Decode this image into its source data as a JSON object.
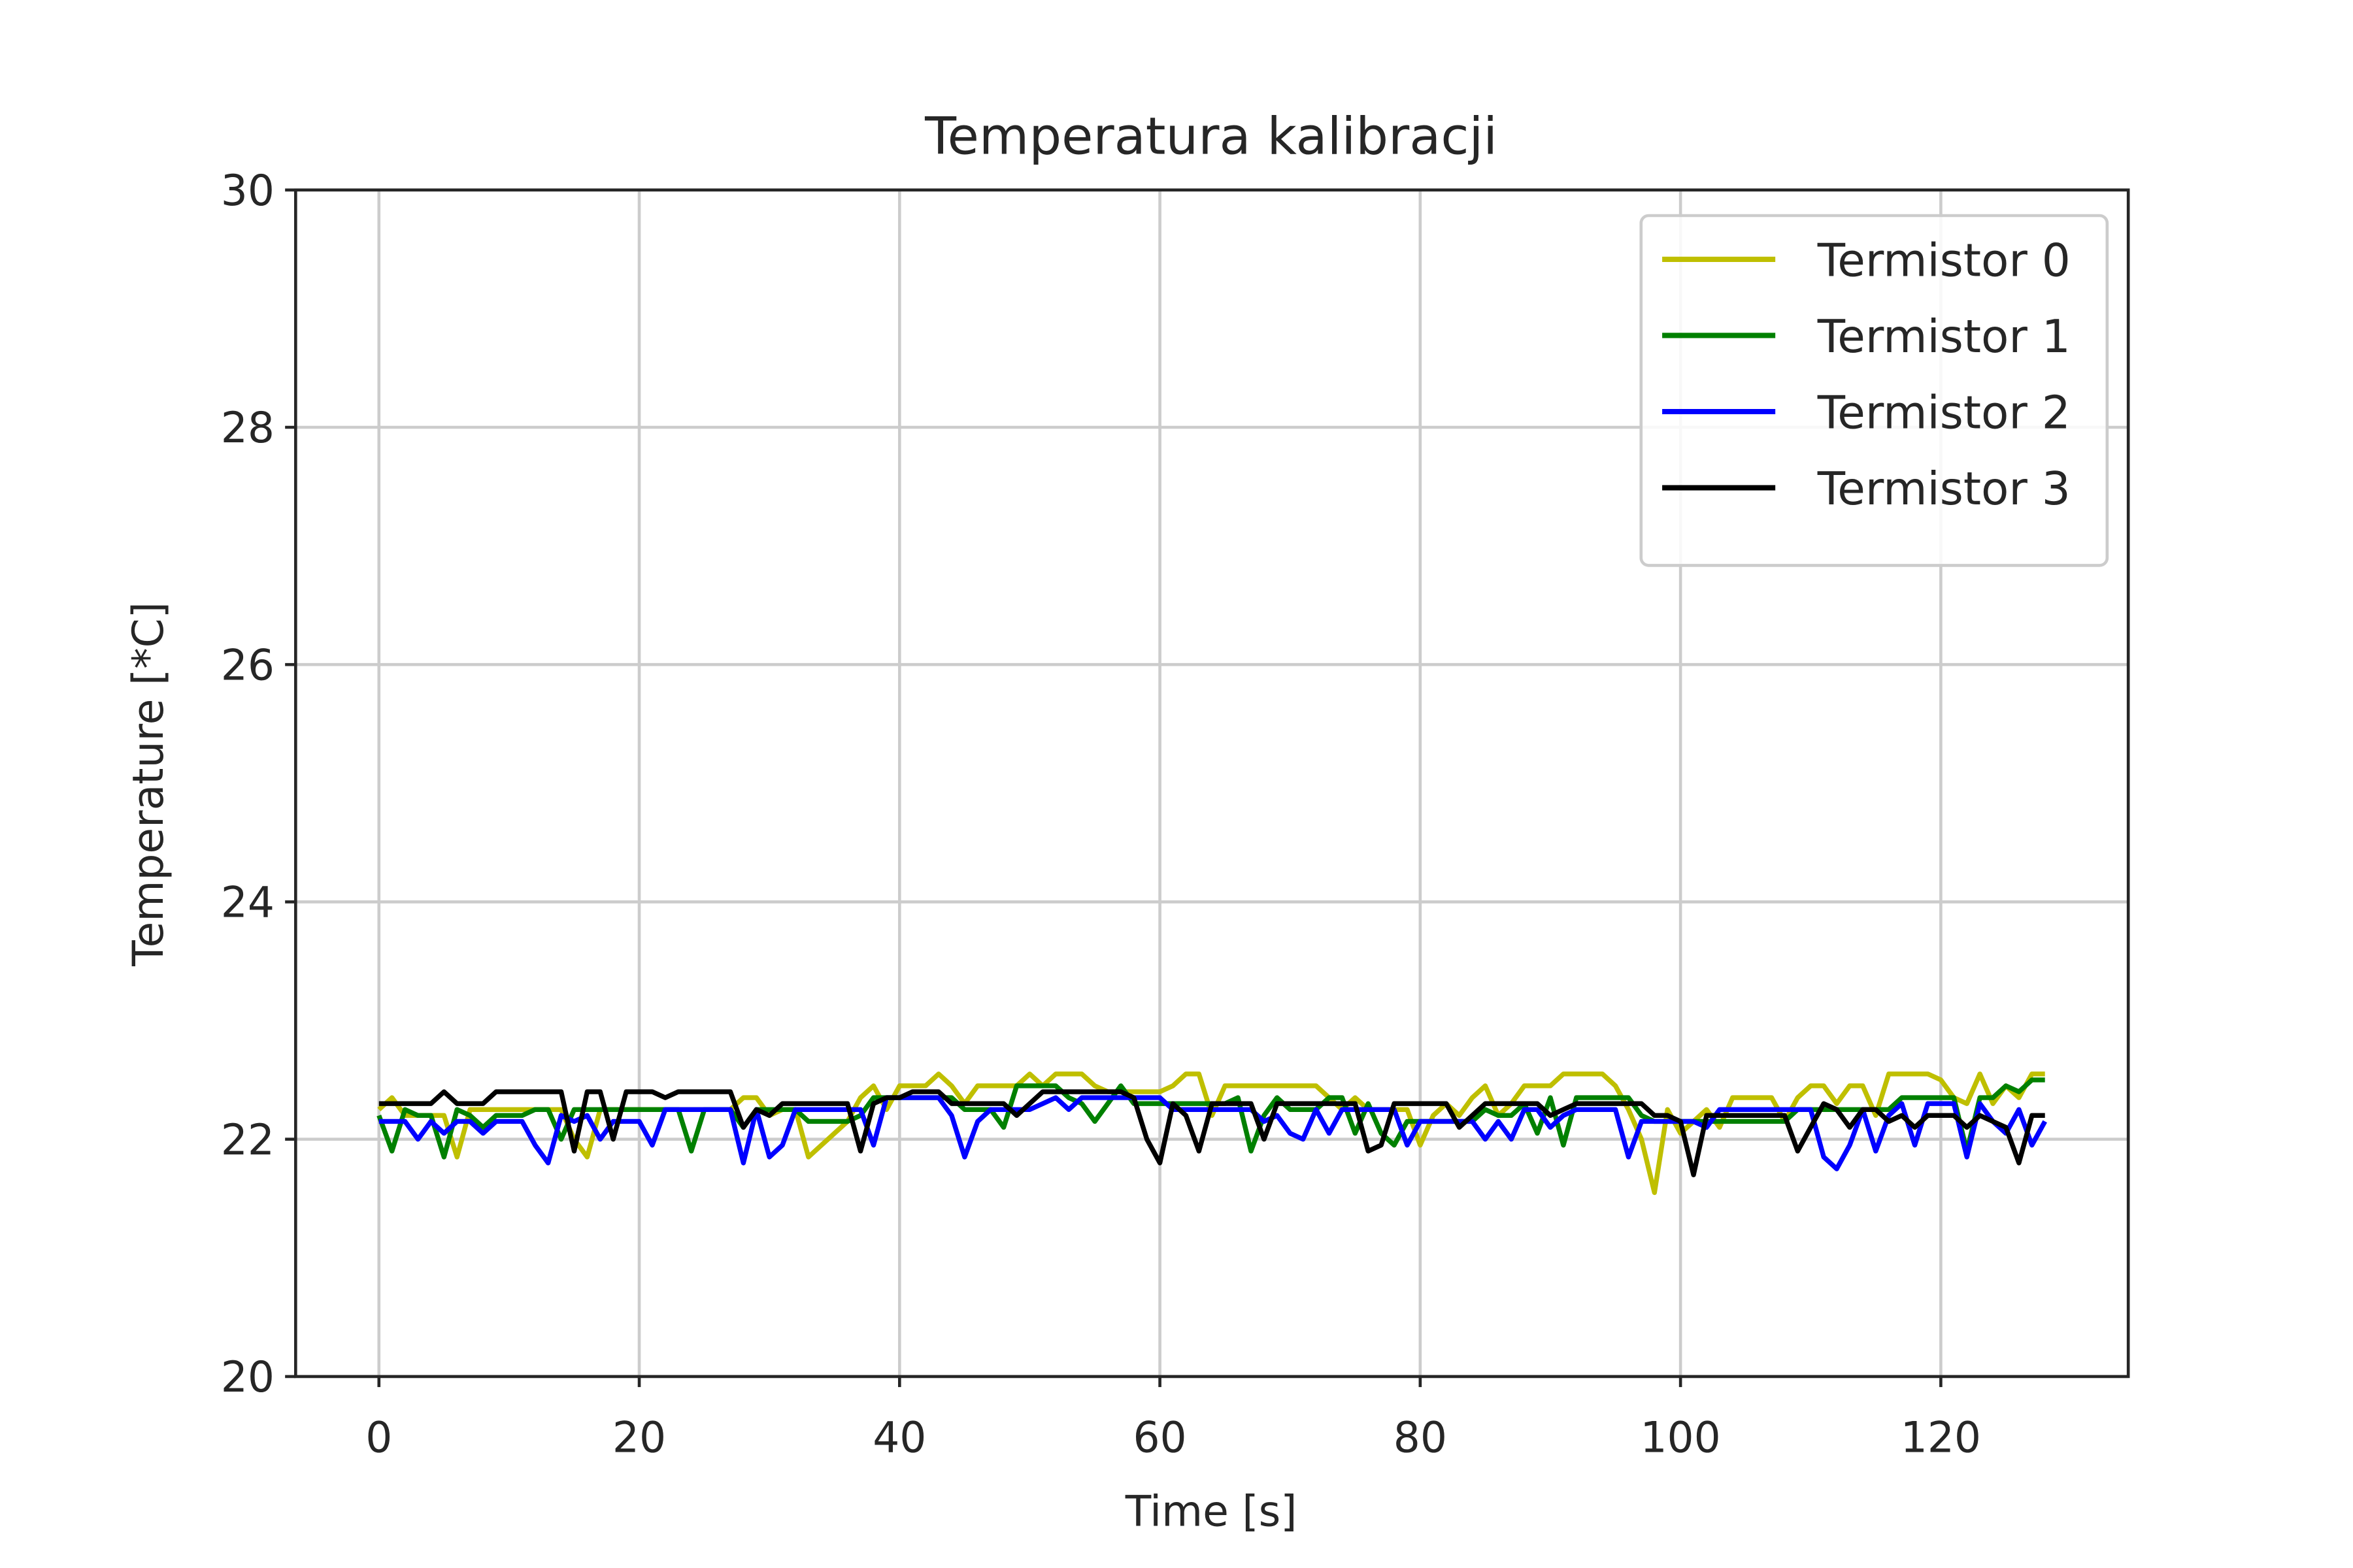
{
  "chart_data": {
    "type": "line",
    "title": "Temperatura kalibracji",
    "xlabel": "Time [s]",
    "ylabel": "Temperature [*C]",
    "x": [
      0,
      1,
      2,
      3,
      4,
      5,
      6,
      7,
      8,
      9,
      10,
      11,
      12,
      13,
      14,
      15,
      16,
      17,
      18,
      19,
      20,
      21,
      22,
      23,
      24,
      25,
      26,
      27,
      28,
      29,
      30,
      31,
      32,
      33,
      34,
      35,
      36,
      37,
      38,
      39,
      40,
      41,
      42,
      43,
      44,
      45,
      46,
      47,
      48,
      49,
      50,
      51,
      52,
      53,
      54,
      55,
      56,
      57,
      58,
      59,
      60,
      61,
      62,
      63,
      64,
      65,
      66,
      67,
      68,
      69,
      70,
      71,
      72,
      73,
      74,
      75,
      76,
      77,
      78,
      79,
      80,
      81,
      82,
      83,
      84,
      85,
      86,
      87,
      88,
      89,
      90,
      91,
      92,
      93,
      94,
      95,
      96,
      97,
      98,
      99,
      100,
      101,
      102,
      103,
      104,
      105,
      106,
      107,
      108,
      109,
      110,
      111,
      112,
      113,
      114,
      115,
      116,
      117,
      118,
      119,
      120,
      121,
      122,
      123,
      124,
      125,
      126,
      127,
      128
    ],
    "series": [
      {
        "name": "Termistor 0",
        "color": "#bfbf00",
        "values": [
          22.25,
          22.35,
          22.2,
          22.2,
          22.2,
          22.2,
          21.85,
          22.25,
          22.25,
          22.25,
          22.25,
          22.25,
          22.25,
          22.25,
          22.25,
          22.0,
          21.85,
          22.25,
          22.25,
          22.25,
          22.25,
          22.25,
          22.25,
          22.25,
          22.25,
          22.25,
          22.25,
          22.25,
          22.35,
          22.35,
          22.2,
          22.25,
          22.25,
          21.85,
          21.95,
          22.05,
          22.15,
          22.35,
          22.45,
          22.25,
          22.45,
          22.45,
          22.45,
          22.55,
          22.45,
          22.3,
          22.45,
          22.45,
          22.45,
          22.45,
          22.55,
          22.45,
          22.55,
          22.55,
          22.55,
          22.45,
          22.4,
          22.4,
          22.4,
          22.4,
          22.4,
          22.45,
          22.55,
          22.55,
          22.2,
          22.45,
          22.45,
          22.45,
          22.45,
          22.45,
          22.45,
          22.45,
          22.45,
          22.35,
          22.25,
          22.35,
          22.25,
          22.25,
          22.25,
          22.25,
          21.95,
          22.2,
          22.3,
          22.2,
          22.35,
          22.45,
          22.2,
          22.3,
          22.45,
          22.45,
          22.45,
          22.55,
          22.55,
          22.55,
          22.55,
          22.45,
          22.25,
          22.0,
          21.55,
          22.25,
          22.05,
          22.15,
          22.25,
          22.1,
          22.35,
          22.35,
          22.35,
          22.35,
          22.15,
          22.35,
          22.45,
          22.45,
          22.3,
          22.45,
          22.45,
          22.2,
          22.55,
          22.55,
          22.55,
          22.55,
          22.5,
          22.35,
          22.3,
          22.55,
          22.3,
          22.45,
          22.35,
          22.55,
          22.55
        ]
      },
      {
        "name": "Termistor 1",
        "color": "#008000",
        "values": [
          22.2,
          21.9,
          22.25,
          22.2,
          22.2,
          21.85,
          22.25,
          22.2,
          22.1,
          22.2,
          22.2,
          22.2,
          22.25,
          22.25,
          22.0,
          22.25,
          22.25,
          22.25,
          22.25,
          22.25,
          22.25,
          22.25,
          22.25,
          22.25,
          21.9,
          22.25,
          22.25,
          22.25,
          22.1,
          22.25,
          22.25,
          22.25,
          22.25,
          22.15,
          22.15,
          22.15,
          22.15,
          22.2,
          22.35,
          22.35,
          22.35,
          22.35,
          22.35,
          22.35,
          22.35,
          22.25,
          22.25,
          22.25,
          22.1,
          22.45,
          22.45,
          22.45,
          22.45,
          22.35,
          22.3,
          22.15,
          22.3,
          22.45,
          22.3,
          22.3,
          22.3,
          22.3,
          22.3,
          22.3,
          22.3,
          22.3,
          22.35,
          21.9,
          22.2,
          22.35,
          22.25,
          22.25,
          22.25,
          22.35,
          22.35,
          22.05,
          22.3,
          22.05,
          21.95,
          22.15,
          22.15,
          22.15,
          22.15,
          22.15,
          22.15,
          22.25,
          22.2,
          22.2,
          22.3,
          22.05,
          22.35,
          21.95,
          22.35,
          22.35,
          22.35,
          22.35,
          22.35,
          22.2,
          22.15,
          22.15,
          22.15,
          22.15,
          22.15,
          22.15,
          22.15,
          22.15,
          22.15,
          22.15,
          22.15,
          22.25,
          22.25,
          22.25,
          22.25,
          22.25,
          22.25,
          22.25,
          22.25,
          22.35,
          22.35,
          22.35,
          22.35,
          22.35,
          21.9,
          22.35,
          22.35,
          22.45,
          22.4,
          22.5,
          22.5
        ]
      },
      {
        "name": "Termistor 2",
        "color": "#0000ff",
        "values": [
          22.15,
          22.15,
          22.15,
          22.0,
          22.15,
          22.05,
          22.15,
          22.15,
          22.05,
          22.15,
          22.15,
          22.15,
          21.95,
          21.8,
          22.2,
          22.15,
          22.2,
          22.0,
          22.15,
          22.15,
          22.15,
          21.95,
          22.25,
          22.25,
          22.25,
          22.25,
          22.25,
          22.25,
          21.8,
          22.25,
          21.85,
          21.95,
          22.25,
          22.25,
          22.25,
          22.25,
          22.25,
          22.25,
          21.95,
          22.35,
          22.35,
          22.35,
          22.35,
          22.35,
          22.2,
          21.85,
          22.15,
          22.25,
          22.25,
          22.25,
          22.25,
          22.3,
          22.35,
          22.25,
          22.35,
          22.35,
          22.35,
          22.35,
          22.35,
          22.35,
          22.35,
          22.25,
          22.25,
          22.25,
          22.25,
          22.25,
          22.25,
          22.25,
          22.15,
          22.2,
          22.05,
          22.0,
          22.25,
          22.05,
          22.25,
          22.25,
          22.25,
          22.25,
          22.25,
          21.95,
          22.15,
          22.15,
          22.15,
          22.15,
          22.15,
          22.0,
          22.15,
          22.0,
          22.25,
          22.25,
          22.1,
          22.2,
          22.25,
          22.25,
          22.25,
          22.25,
          21.85,
          22.15,
          22.15,
          22.15,
          22.15,
          22.15,
          22.1,
          22.25,
          22.25,
          22.25,
          22.25,
          22.25,
          22.25,
          22.25,
          22.25,
          21.85,
          21.75,
          21.95,
          22.25,
          21.9,
          22.2,
          22.3,
          21.95,
          22.3,
          22.3,
          22.3,
          21.85,
          22.3,
          22.15,
          22.05,
          22.25,
          21.95,
          22.15
        ]
      },
      {
        "name": "Termistor 3",
        "color": "#000000",
        "values": [
          22.3,
          22.3,
          22.3,
          22.3,
          22.3,
          22.4,
          22.3,
          22.3,
          22.3,
          22.4,
          22.4,
          22.4,
          22.4,
          22.4,
          22.4,
          21.9,
          22.4,
          22.4,
          22.0,
          22.4,
          22.4,
          22.4,
          22.35,
          22.4,
          22.4,
          22.4,
          22.4,
          22.4,
          22.1,
          22.25,
          22.2,
          22.3,
          22.3,
          22.3,
          22.3,
          22.3,
          22.3,
          21.9,
          22.3,
          22.35,
          22.35,
          22.4,
          22.4,
          22.4,
          22.3,
          22.3,
          22.3,
          22.3,
          22.3,
          22.2,
          22.3,
          22.4,
          22.4,
          22.4,
          22.4,
          22.4,
          22.4,
          22.4,
          22.35,
          22.0,
          21.8,
          22.3,
          22.2,
          21.9,
          22.3,
          22.3,
          22.3,
          22.3,
          22.0,
          22.3,
          22.3,
          22.3,
          22.3,
          22.3,
          22.3,
          22.3,
          21.9,
          21.95,
          22.3,
          22.3,
          22.3,
          22.3,
          22.3,
          22.1,
          22.2,
          22.3,
          22.3,
          22.3,
          22.3,
          22.3,
          22.2,
          22.25,
          22.3,
          22.3,
          22.3,
          22.3,
          22.3,
          22.3,
          22.2,
          22.2,
          22.15,
          21.7,
          22.2,
          22.2,
          22.2,
          22.2,
          22.2,
          22.2,
          22.2,
          21.9,
          22.1,
          22.3,
          22.25,
          22.1,
          22.25,
          22.25,
          22.15,
          22.2,
          22.1,
          22.2,
          22.2,
          22.2,
          22.1,
          22.2,
          22.15,
          22.1,
          21.8,
          22.2,
          22.2
        ]
      }
    ],
    "xlim": [
      -6.4,
      134.4
    ],
    "xticks": [
      0,
      20,
      40,
      60,
      80,
      100,
      120
    ],
    "ylim": [
      20,
      30
    ],
    "yticks": [
      20,
      22,
      24,
      26,
      28,
      30
    ],
    "grid": true,
    "legend": "upper right"
  }
}
